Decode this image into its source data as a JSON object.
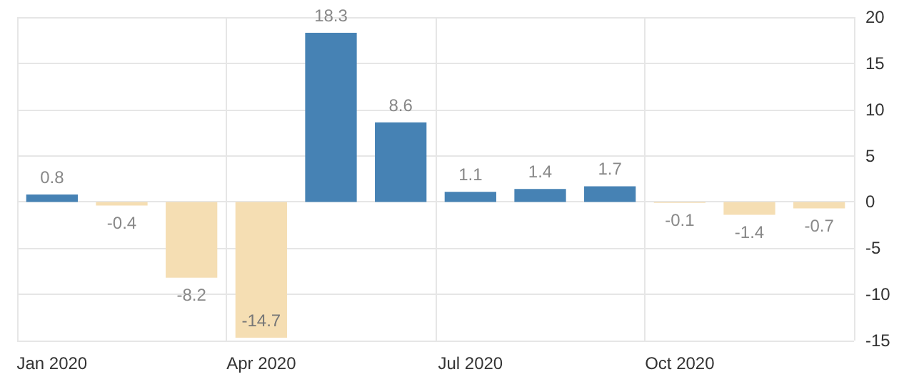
{
  "chart_data": {
    "type": "bar",
    "categories": [
      "Jan 2020",
      null,
      null,
      "Apr 2020",
      null,
      null,
      "Jul 2020",
      null,
      null,
      "Oct 2020",
      null,
      null
    ],
    "values": [
      0.8,
      -0.4,
      -8.2,
      -14.7,
      18.3,
      8.6,
      1.1,
      1.4,
      1.7,
      -0.1,
      -1.4,
      -0.7
    ],
    "colors": [
      "#4682b4",
      "#f5deb3",
      "#f5deb3",
      "#f5deb3",
      "#4682b4",
      "#4682b4",
      "#4682b4",
      "#4682b4",
      "#4682b4",
      "#f5deb3",
      "#f5deb3",
      "#f5deb3"
    ],
    "ylim": [
      -15,
      20
    ],
    "yticks": [
      -15,
      -10,
      -5,
      0,
      5,
      10,
      15,
      20
    ],
    "grid": true,
    "data_labels": true
  }
}
